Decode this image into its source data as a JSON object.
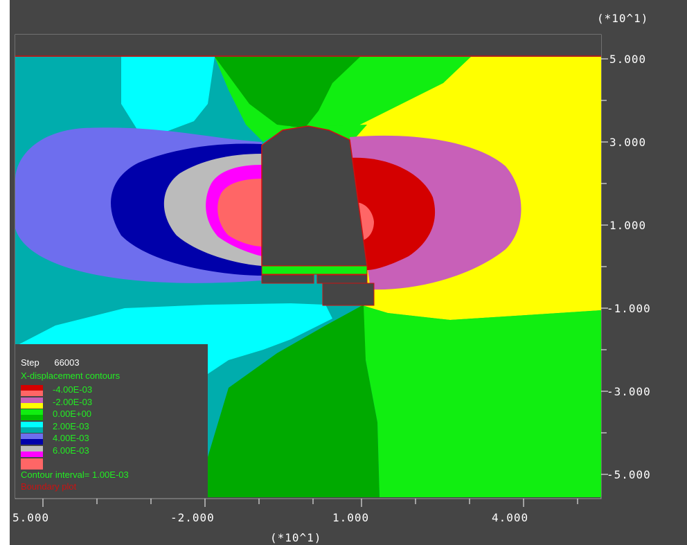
{
  "axes": {
    "x_multiplier": "(*10^1)",
    "y_multiplier": "(*10^1)",
    "x_ticks": [
      "5.000",
      "-2.000",
      "1.000",
      "4.000"
    ],
    "y_ticks": [
      "5.000",
      "3.000",
      "1.000",
      "-1.000",
      "-3.000",
      "-5.000"
    ]
  },
  "legend": {
    "step_label": "Step",
    "step_value": "66003",
    "title": "X-displacement contours",
    "entries": [
      {
        "value": "-4.00E-03",
        "colors": [
          "#d40000",
          "#ff6666"
        ]
      },
      {
        "value": "-2.00E-03",
        "colors": [
          "#c860b8",
          "#ffff00"
        ]
      },
      {
        "value": "0.00E+00",
        "colors": [
          "#11ee11",
          "#00bb00"
        ]
      },
      {
        "value": "2.00E-03",
        "colors": [
          "#00ffff",
          "#00adad"
        ]
      },
      {
        "value": "4.00E-03",
        "colors": [
          "#6e6eee",
          "#0000aa"
        ]
      },
      {
        "value": "6.00E-03",
        "colors": [
          "#bbbbbb",
          "#ff00ff"
        ]
      },
      {
        "value": "",
        "colors": [
          "#ff6666",
          "#ff6666"
        ]
      }
    ],
    "interval": "Contour interval=  1.00E-03",
    "boundary": "Boundary plot"
  },
  "colors": {
    "background": "#454545",
    "yellow": "#ffff00",
    "green_light": "#11ee11",
    "green_dark": "#00aa00",
    "cyan": "#00ffff",
    "teal": "#00adad",
    "periwinkle": "#6e6eee",
    "navy": "#0000aa",
    "gray": "#bbbbbb",
    "magenta": "#ff00ff",
    "salmon": "#ff6666",
    "orchid": "#c860b8",
    "red": "#d40000",
    "boundary": "#cc1111"
  }
}
